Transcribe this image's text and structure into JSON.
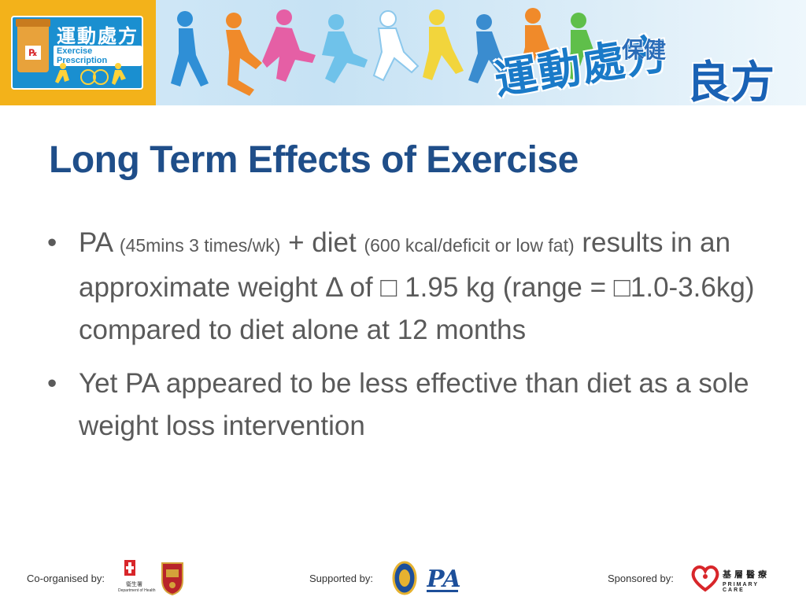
{
  "header": {
    "logo_title": "運動處方",
    "logo_subtitle": "Exercise Prescription",
    "logo_rx": "℞",
    "slogan_line1": "運動處方",
    "slogan_line2a": "保健",
    "slogan_line2b": "良方"
  },
  "slide": {
    "title": "Long Term Effects of Exercise",
    "bullets": [
      {
        "pa": "PA",
        "pa_detail": "(45mins 3 times/wk)",
        "plus": "+ diet",
        "diet_detail": "(600 kcal/deficit or low fat)",
        "text": "results in an approximate weight Δ of □ 1.95 kg (range = □1.0-3.6kg) compared to diet alone at 12 months"
      },
      {
        "text": "Yet PA appeared to be less effective than diet as a sole weight loss intervention"
      }
    ]
  },
  "footer": {
    "coorganised_label": "Co-organised by:",
    "supported_label": "Supported by:",
    "sponsored_label": "Sponsored by:",
    "doh_zh": "衞生署",
    "doh_en": "Department of Health",
    "sponsor_zh": "基層醫療",
    "sponsor_en": "PRIMARY CARE"
  },
  "colors": {
    "title": "#1f4e89",
    "body_text": "#5a5a5a",
    "logo_yellow": "#f3b21a",
    "logo_blue": "#1a8fd0"
  }
}
